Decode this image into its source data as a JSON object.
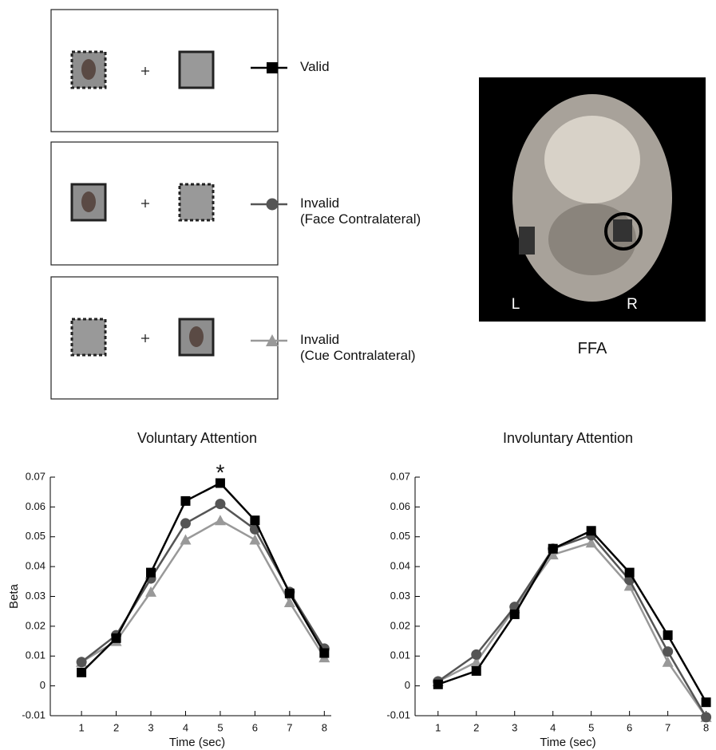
{
  "chart_data": [
    {
      "type": "line",
      "title": "Voluntary Attention",
      "xlabel": "Time (sec)",
      "ylabel": "Beta",
      "x": [
        1,
        2,
        3,
        4,
        5,
        6,
        7,
        8
      ],
      "xlim": [
        0.1,
        8.2
      ],
      "xticks": [
        1,
        2,
        3,
        4,
        5,
        6,
        7,
        8
      ],
      "ylim": [
        -0.01,
        0.07
      ],
      "yticks": [
        -0.01,
        0,
        0.01,
        0.02,
        0.03,
        0.04,
        0.05,
        0.06,
        0.07
      ],
      "annotations": [
        {
          "text": "*",
          "x": 5
        }
      ],
      "series": [
        {
          "name": "Valid",
          "color": "#000000",
          "marker": "square",
          "values": [
            0.0045,
            0.016,
            0.038,
            0.062,
            0.068,
            0.0555,
            0.031,
            0.011
          ]
        },
        {
          "name": "Invalid\n(Face Contralateral)",
          "color": "#555555",
          "marker": "circle",
          "values": [
            0.008,
            0.017,
            0.036,
            0.0545,
            0.061,
            0.0525,
            0.0315,
            0.0125
          ]
        },
        {
          "name": "Invalid\n(Cue Contralateral)",
          "color": "#999999",
          "marker": "triangle",
          "values": [
            0.008,
            0.015,
            0.0315,
            0.049,
            0.0555,
            0.049,
            0.028,
            0.0095
          ]
        }
      ]
    },
    {
      "type": "line",
      "title": "Involuntary Attention",
      "xlabel": "Time (sec)",
      "x": [
        1,
        2,
        3,
        4,
        5,
        6,
        7,
        8
      ],
      "xlim": [
        0.4,
        8.05
      ],
      "xticks": [
        1,
        2,
        3,
        4,
        5,
        6,
        7,
        8
      ],
      "ylim": [
        -0.01,
        0.07
      ],
      "yticks": [
        -0.01,
        0,
        0.01,
        0.02,
        0.03,
        0.04,
        0.05,
        0.06,
        0.07
      ],
      "series": [
        {
          "name": "Valid",
          "color": "#000000",
          "marker": "square",
          "values": [
            0.0005,
            0.005,
            0.024,
            0.046,
            0.052,
            0.038,
            0.017,
            -0.0055
          ]
        },
        {
          "name": "Invalid\n(Face Contralateral)",
          "color": "#555555",
          "marker": "circle",
          "values": [
            0.0015,
            0.0105,
            0.0265,
            0.046,
            0.0505,
            0.0355,
            0.0115,
            -0.0105
          ]
        },
        {
          "name": "Invalid\n(Cue Contralateral)",
          "color": "#999999",
          "marker": "triangle",
          "values": [
            0.0015,
            0.008,
            0.026,
            0.044,
            0.048,
            0.0335,
            0.008,
            -0.0105
          ]
        }
      ]
    }
  ],
  "brain": {
    "hemisphere_left": "L",
    "hemisphere_right": "R",
    "region": "FFA"
  }
}
